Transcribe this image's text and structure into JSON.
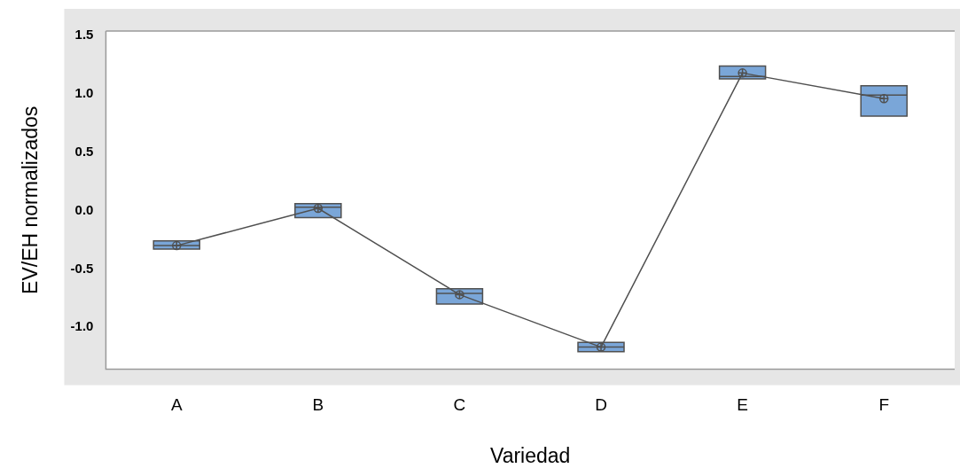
{
  "chart_data": {
    "type": "box",
    "xlabel": "Variedad",
    "ylabel": "EV/EH normalizados",
    "categories": [
      "A",
      "B",
      "C",
      "D",
      "E",
      "F"
    ],
    "color": "#7aa6d8",
    "boxes": [
      {
        "low": -0.33,
        "q1": -0.33,
        "median": -0.3,
        "q3": -0.26,
        "high": -0.26
      },
      {
        "low": -0.06,
        "q1": -0.06,
        "median": 0.03,
        "q3": 0.06,
        "high": 0.06
      },
      {
        "low": -0.8,
        "q1": -0.8,
        "median": -0.71,
        "q3": -0.67,
        "high": -0.67
      },
      {
        "low": -1.21,
        "q1": -1.21,
        "median": -1.17,
        "q3": -1.13,
        "high": -1.13
      },
      {
        "low": 1.13,
        "q1": 1.13,
        "median": 1.15,
        "q3": 1.24,
        "high": 1.24
      },
      {
        "low": 0.81,
        "q1": 0.81,
        "median": 0.99,
        "q3": 1.07,
        "high": 1.07
      }
    ],
    "series": [
      {
        "type": "line",
        "color": "#505050",
        "values": [
          -0.3,
          0.02,
          -0.72,
          -1.17,
          1.18,
          0.96
        ],
        "marker": "circle"
      }
    ],
    "ylim": [
      -1.36,
      1.54
    ],
    "yticks": [
      {
        "value": -1,
        "label": "-1.0"
      },
      {
        "value": -0.5,
        "label": "-0.5"
      },
      {
        "value": 0,
        "label": "0.0"
      },
      {
        "value": 0.5,
        "label": "0.5"
      },
      {
        "value": 1,
        "label": "1.0"
      },
      {
        "value": 1.5,
        "label": "1.5"
      }
    ],
    "grid": false,
    "legend": false
  }
}
